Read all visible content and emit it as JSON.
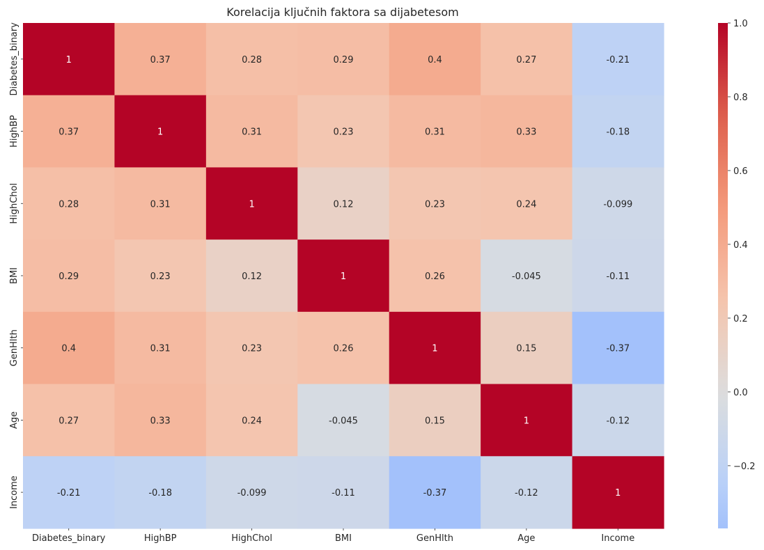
{
  "chart_data": {
    "type": "heatmap",
    "title": "Korelacija ključnih faktora sa dijabetesom",
    "xlabel": "",
    "ylabel": "",
    "rows": [
      "Diabetes_binary",
      "HighBP",
      "HighChol",
      "BMI",
      "GenHlth",
      "Age",
      "Income"
    ],
    "columns": [
      "Diabetes_binary",
      "HighBP",
      "HighChol",
      "BMI",
      "GenHlth",
      "Age",
      "Income"
    ],
    "values": [
      [
        1,
        0.37,
        0.28,
        0.29,
        0.4,
        0.27,
        -0.21
      ],
      [
        0.37,
        1,
        0.31,
        0.23,
        0.31,
        0.33,
        -0.18
      ],
      [
        0.28,
        0.31,
        1,
        0.12,
        0.23,
        0.24,
        -0.099
      ],
      [
        0.29,
        0.23,
        0.12,
        1,
        0.26,
        -0.045,
        -0.11
      ],
      [
        0.4,
        0.31,
        0.23,
        0.26,
        1,
        0.15,
        -0.37
      ],
      [
        0.27,
        0.33,
        0.24,
        -0.045,
        0.15,
        1,
        -0.12
      ],
      [
        -0.21,
        -0.18,
        -0.099,
        -0.11,
        -0.37,
        -0.12,
        1
      ]
    ],
    "annotations": [
      [
        "1",
        "0.37",
        "0.28",
        "0.29",
        "0.4",
        "0.27",
        "-0.21"
      ],
      [
        "0.37",
        "1",
        "0.31",
        "0.23",
        "0.31",
        "0.33",
        "-0.18"
      ],
      [
        "0.28",
        "0.31",
        "1",
        "0.12",
        "0.23",
        "0.24",
        "-0.099"
      ],
      [
        "0.29",
        "0.23",
        "0.12",
        "1",
        "0.26",
        "-0.045",
        "-0.11"
      ],
      [
        "0.4",
        "0.31",
        "0.23",
        "0.26",
        "1",
        "0.15",
        "-0.37"
      ],
      [
        "0.27",
        "0.33",
        "0.24",
        "-0.045",
        "0.15",
        "1",
        "-0.12"
      ],
      [
        "-0.21",
        "-0.18",
        "-0.099",
        "-0.11",
        "-0.37",
        "-0.12",
        "1"
      ]
    ],
    "colormap": "coolwarm",
    "center": 0,
    "colorbar": {
      "range": [
        -0.37,
        1.0
      ],
      "ticks": [
        -0.2,
        0.0,
        0.2,
        0.4,
        0.6,
        0.8,
        1.0
      ],
      "tick_labels": [
        "−0.2",
        "0.0",
        "0.2",
        "0.4",
        "0.6",
        "0.8",
        "1.0"
      ]
    },
    "grid": false,
    "colorbar_position": "right"
  }
}
